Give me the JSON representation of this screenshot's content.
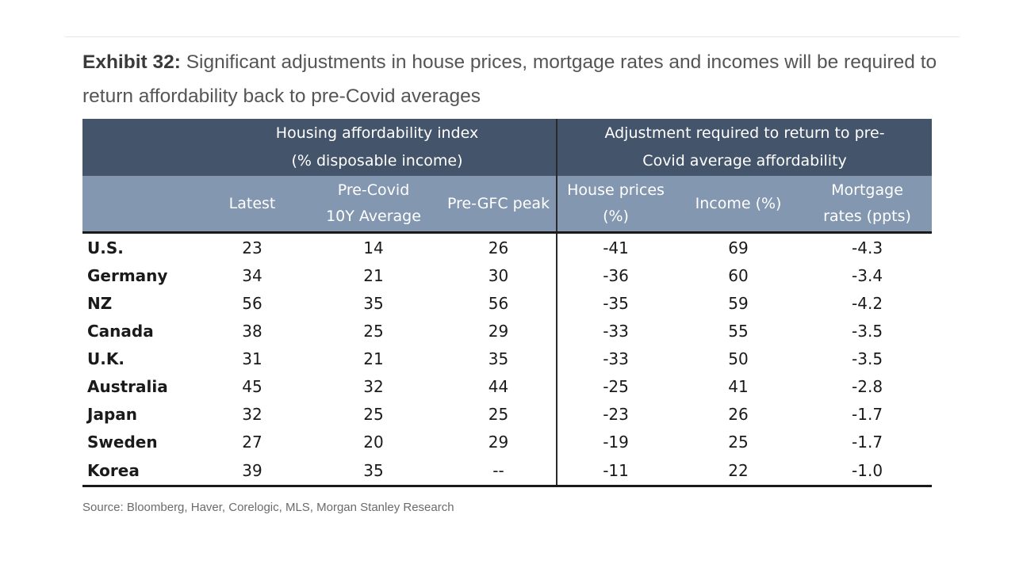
{
  "title": {
    "exhibit": "Exhibit 32:",
    "text": "Significant adjustments in house prices, mortgage rates and incomes will be required to return affordability back to pre-Covid averages"
  },
  "chart_data": {
    "type": "table",
    "group_headers": [
      {
        "line1": "Housing affordability index",
        "line2": "(% disposable income)"
      },
      {
        "line1": "Adjustment required to return to pre-",
        "line2": "Covid average affordability"
      }
    ],
    "columns": [
      {
        "line1": "",
        "line2": ""
      },
      {
        "line1": "Latest",
        "line2": ""
      },
      {
        "line1": "Pre-Covid",
        "line2": "10Y Average"
      },
      {
        "line1": "Pre-GFC peak",
        "line2": ""
      },
      {
        "line1": "House prices",
        "line2": "(%)"
      },
      {
        "line1": "Income (%)",
        "line2": ""
      },
      {
        "line1": "Mortgage",
        "line2": "rates (ppts)"
      }
    ],
    "rows": [
      [
        "U.S.",
        "23",
        "14",
        "26",
        "-41",
        "69",
        "-4.3"
      ],
      [
        "Germany",
        "34",
        "21",
        "30",
        "-36",
        "60",
        "-3.4"
      ],
      [
        "NZ",
        "56",
        "35",
        "56",
        "-35",
        "59",
        "-4.2"
      ],
      [
        "Canada",
        "38",
        "25",
        "29",
        "-33",
        "55",
        "-3.5"
      ],
      [
        "U.K.",
        "31",
        "21",
        "35",
        "-33",
        "50",
        "-3.5"
      ],
      [
        "Australia",
        "45",
        "32",
        "44",
        "-25",
        "41",
        "-2.8"
      ],
      [
        "Japan",
        "32",
        "25",
        "25",
        "-23",
        "26",
        "-1.7"
      ],
      [
        "Sweden",
        "27",
        "20",
        "29",
        "-19",
        "25",
        "-1.7"
      ],
      [
        "Korea",
        "39",
        "35",
        "--",
        "-11",
        "22",
        "-1.0"
      ]
    ]
  },
  "source": "Source: Bloomberg, Haver, Corelogic, MLS, Morgan Stanley Research"
}
